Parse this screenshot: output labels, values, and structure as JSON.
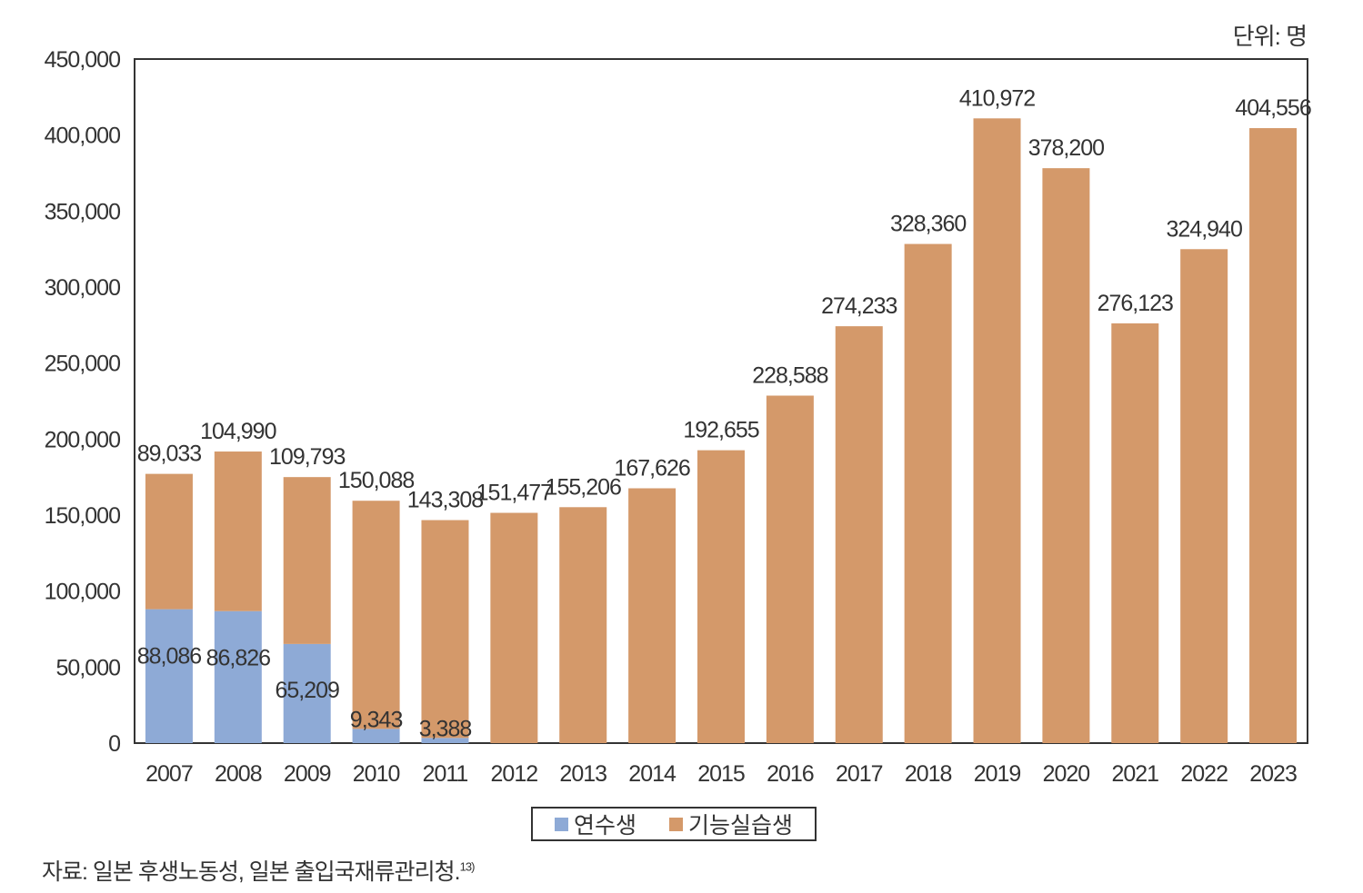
{
  "chart_data": {
    "type": "bar",
    "stacked": true,
    "unit_label": "단위: 명",
    "categories": [
      "2007",
      "2008",
      "2009",
      "2010",
      "2011",
      "2012",
      "2013",
      "2014",
      "2015",
      "2016",
      "2017",
      "2018",
      "2019",
      "2020",
      "2021",
      "2022",
      "2023"
    ],
    "series": [
      {
        "name": "연수생",
        "color": "#8eaad6",
        "values": [
          88086,
          86826,
          65209,
          9343,
          3388,
          0,
          0,
          0,
          0,
          0,
          0,
          0,
          0,
          0,
          0,
          0,
          0
        ]
      },
      {
        "name": "기능실습생",
        "color": "#d4996a",
        "values": [
          89033,
          104990,
          109793,
          150088,
          143308,
          151477,
          155206,
          167626,
          192655,
          228588,
          274233,
          328360,
          410972,
          378200,
          276123,
          324940,
          404556
        ]
      }
    ],
    "ylim": [
      0,
      450000
    ],
    "yticks": [
      0,
      50000,
      100000,
      150000,
      200000,
      250000,
      300000,
      350000,
      400000,
      450000
    ],
    "grid": false,
    "legend_position": "bottom-center"
  },
  "source": {
    "text": "자료: 일본 후생노동성, 일본 출입국재류관리청.",
    "footnote": "13)"
  }
}
